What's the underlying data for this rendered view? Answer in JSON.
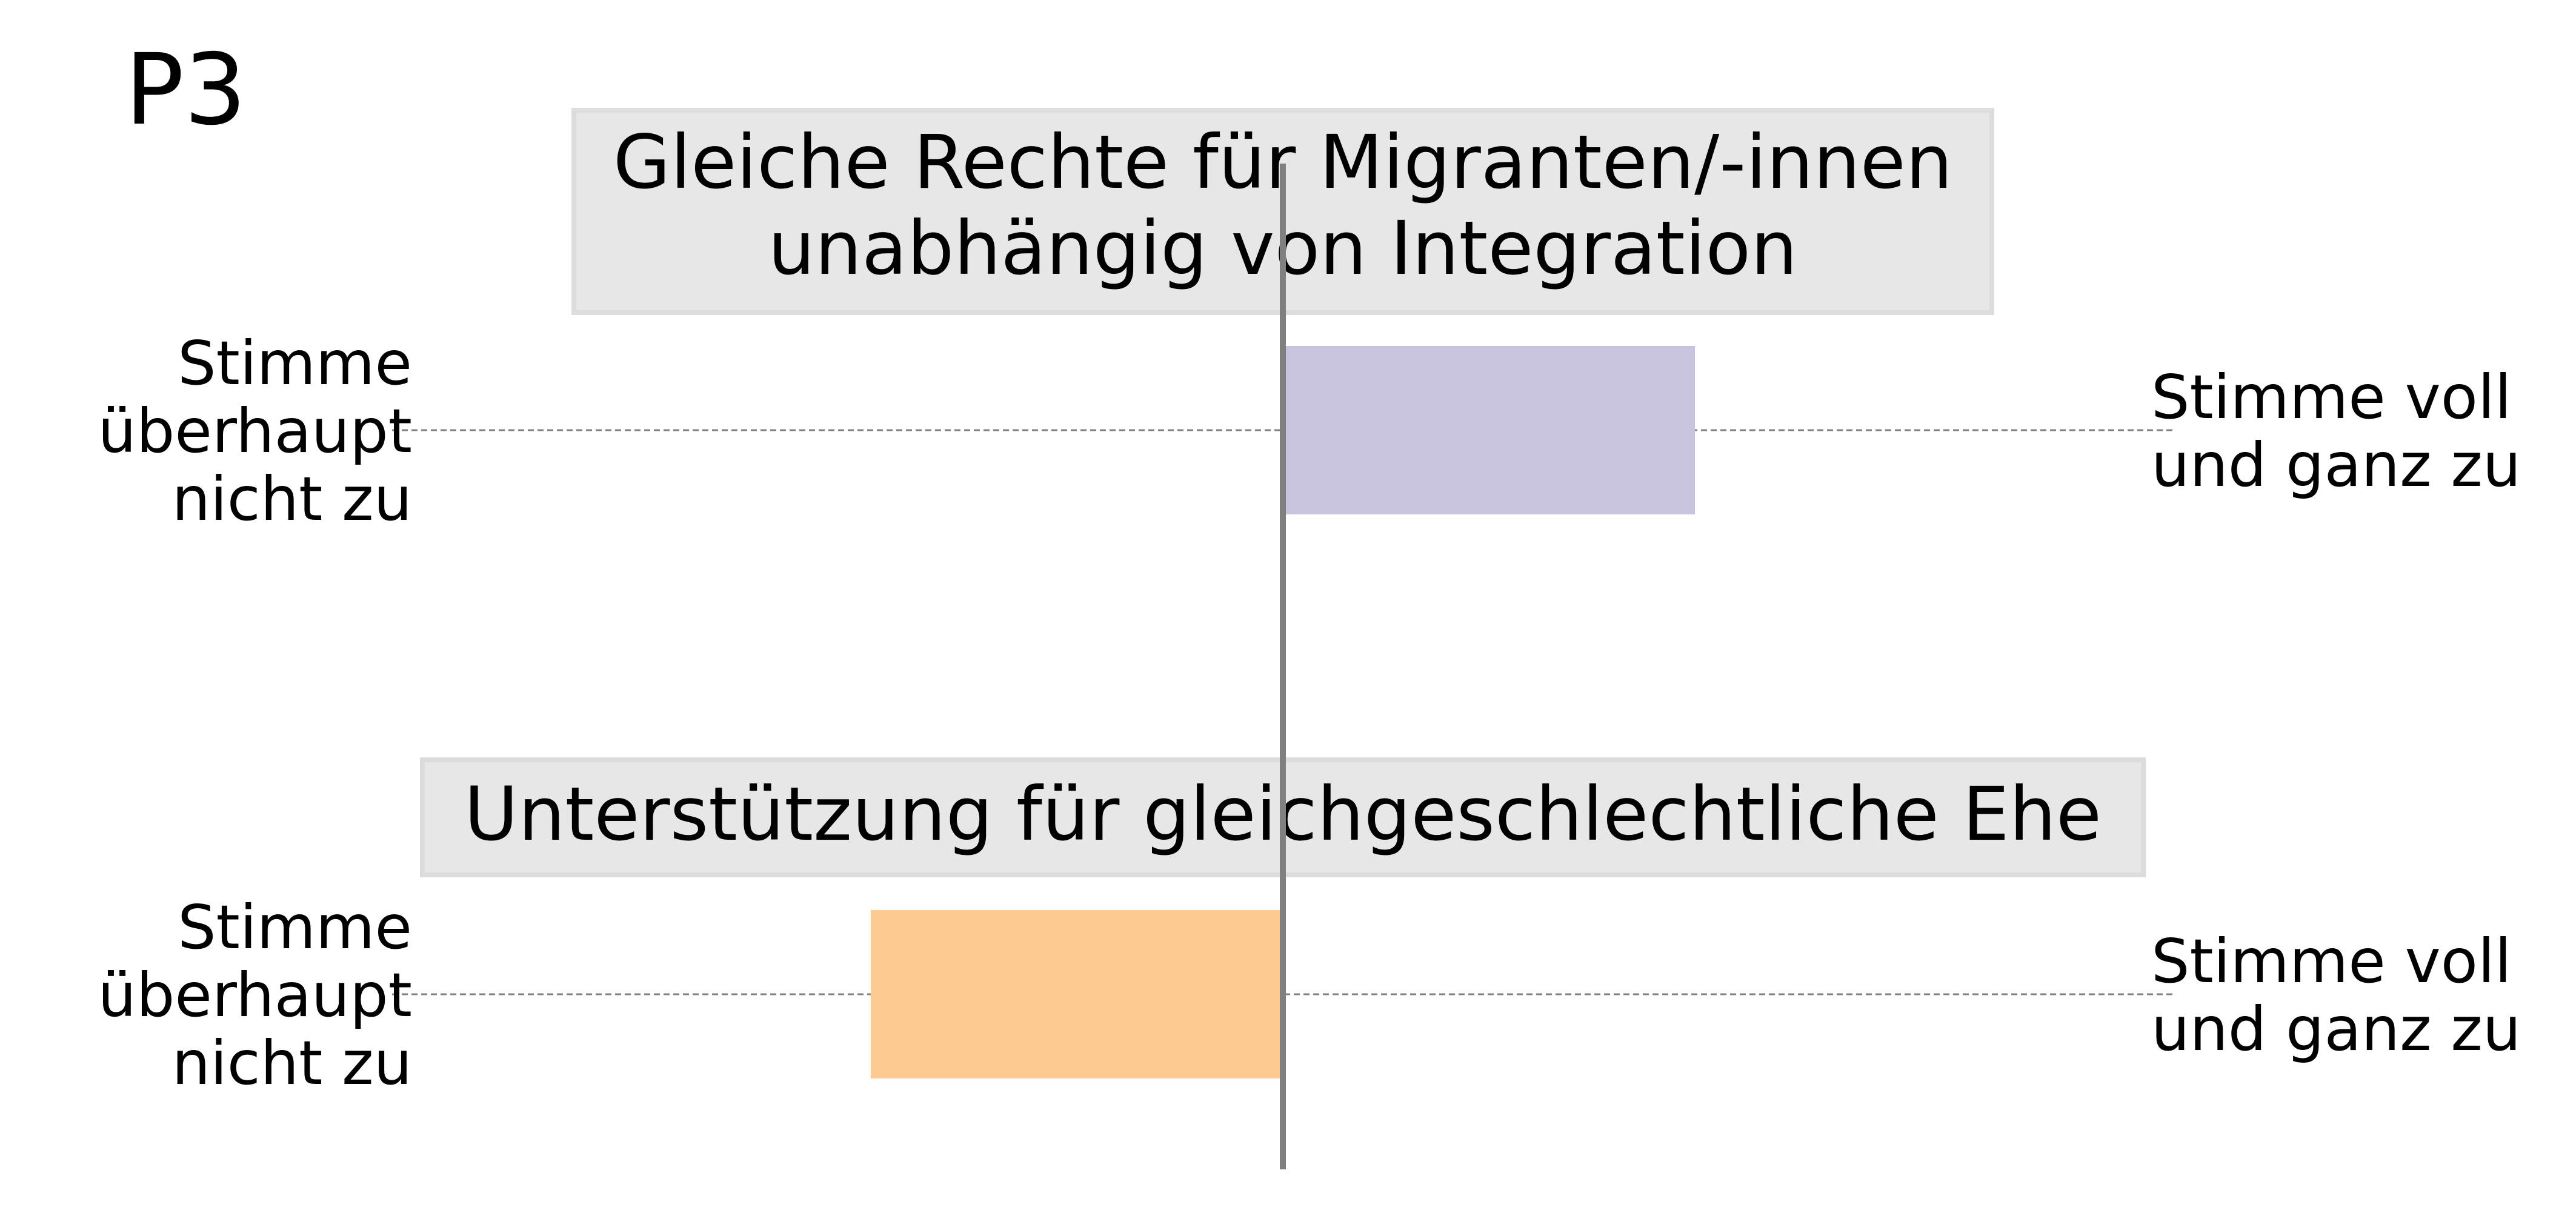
{
  "chart_data": {
    "type": "bar",
    "orientation": "diverging-horizontal",
    "panel_label": "P3",
    "xlim": [
      -1,
      1
    ],
    "center_line": 0,
    "grid": false,
    "items": [
      {
        "title_lines": [
          "Gleiche Rechte für Migranten/-innen",
          "unabhängig von Integration"
        ],
        "value": 0.5,
        "color": "#c8c4e0",
        "left_label_lines": [
          "Stimme",
          "überhaupt",
          "nicht zu"
        ],
        "right_label_lines": [
          "Stimme voll",
          "und ganz zu"
        ]
      },
      {
        "title_lines": [
          "Unterstützung für gleichgeschlechtliche Ehe"
        ],
        "value": -0.5,
        "color": "#fdcb91",
        "left_label_lines": [
          "Stimme",
          "überhaupt",
          "nicht zu"
        ],
        "right_label_lines": [
          "Stimme voll",
          "und ganz zu"
        ]
      }
    ],
    "colors": {
      "title_box": "#e6e6e6",
      "title_box_border": "#dcdcdc",
      "center_line": "#808080",
      "guide_line": "#808080"
    }
  }
}
